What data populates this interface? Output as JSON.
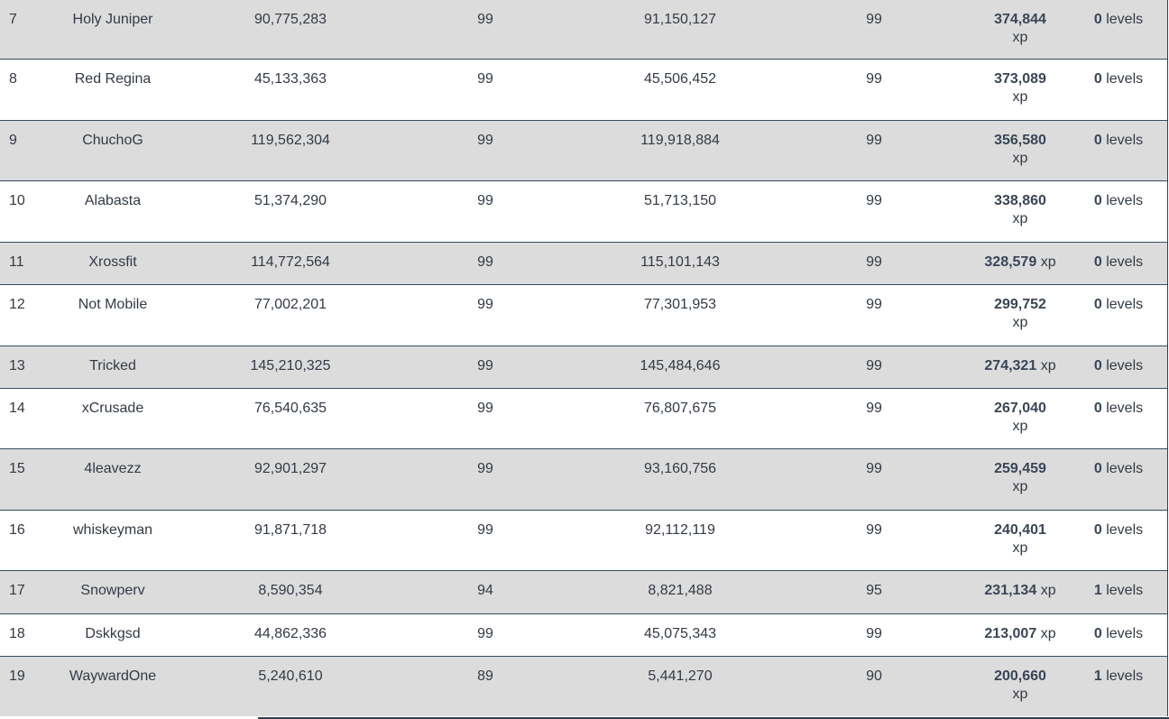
{
  "rows": [
    {
      "rank": "7",
      "name": "Holy Juniper",
      "start_xp": "90,775,283",
      "start_level": "99",
      "end_xp": "91,150,127",
      "end_level": "99",
      "gained_xp": "374,844",
      "xp_unit": "xp",
      "levels": "0",
      "levels_unit": "levels"
    },
    {
      "rank": "8",
      "name": "Red Regina",
      "start_xp": "45,133,363",
      "start_level": "99",
      "end_xp": "45,506,452",
      "end_level": "99",
      "gained_xp": "373,089",
      "xp_unit": "xp",
      "levels": "0",
      "levels_unit": "levels"
    },
    {
      "rank": "9",
      "name": "ChuchoG",
      "start_xp": "119,562,304",
      "start_level": "99",
      "end_xp": "119,918,884",
      "end_level": "99",
      "gained_xp": "356,580",
      "xp_unit": "xp",
      "levels": "0",
      "levels_unit": "levels"
    },
    {
      "rank": "10",
      "name": "Alabasta",
      "start_xp": "51,374,290",
      "start_level": "99",
      "end_xp": "51,713,150",
      "end_level": "99",
      "gained_xp": "338,860",
      "xp_unit": "xp",
      "levels": "0",
      "levels_unit": "levels"
    },
    {
      "rank": "11",
      "name": "Xrossfit",
      "start_xp": "114,772,564",
      "start_level": "99",
      "end_xp": "115,101,143",
      "end_level": "99",
      "gained_xp": "328,579",
      "xp_unit": "xp",
      "levels": "0",
      "levels_unit": "levels"
    },
    {
      "rank": "12",
      "name": "Not Mobile",
      "start_xp": "77,002,201",
      "start_level": "99",
      "end_xp": "77,301,953",
      "end_level": "99",
      "gained_xp": "299,752",
      "xp_unit": "xp",
      "levels": "0",
      "levels_unit": "levels"
    },
    {
      "rank": "13",
      "name": "Tricked",
      "start_xp": "145,210,325",
      "start_level": "99",
      "end_xp": "145,484,646",
      "end_level": "99",
      "gained_xp": "274,321",
      "xp_unit": "xp",
      "levels": "0",
      "levels_unit": "levels"
    },
    {
      "rank": "14",
      "name": "xCrusade",
      "start_xp": "76,540,635",
      "start_level": "99",
      "end_xp": "76,807,675",
      "end_level": "99",
      "gained_xp": "267,040",
      "xp_unit": "xp",
      "levels": "0",
      "levels_unit": "levels"
    },
    {
      "rank": "15",
      "name": "4leavezz",
      "start_xp": "92,901,297",
      "start_level": "99",
      "end_xp": "93,160,756",
      "end_level": "99",
      "gained_xp": "259,459",
      "xp_unit": "xp",
      "levels": "0",
      "levels_unit": "levels"
    },
    {
      "rank": "16",
      "name": "whiskeyman",
      "start_xp": "91,871,718",
      "start_level": "99",
      "end_xp": "92,112,119",
      "end_level": "99",
      "gained_xp": "240,401",
      "xp_unit": "xp",
      "levels": "0",
      "levels_unit": "levels"
    },
    {
      "rank": "17",
      "name": "Snowperv",
      "start_xp": "8,590,354",
      "start_level": "94",
      "end_xp": "8,821,488",
      "end_level": "95",
      "gained_xp": "231,134",
      "xp_unit": "xp",
      "levels": "1",
      "levels_unit": "levels"
    },
    {
      "rank": "18",
      "name": "Dskkgsd",
      "start_xp": "44,862,336",
      "start_level": "99",
      "end_xp": "45,075,343",
      "end_level": "99",
      "gained_xp": "213,007",
      "xp_unit": "xp",
      "levels": "0",
      "levels_unit": "levels"
    },
    {
      "rank": "19",
      "name": "WaywardOne",
      "start_xp": "5,240,610",
      "start_level": "89",
      "end_xp": "5,441,270",
      "end_level": "90",
      "gained_xp": "200,660",
      "xp_unit": "xp",
      "levels": "1",
      "levels_unit": "levels"
    }
  ]
}
